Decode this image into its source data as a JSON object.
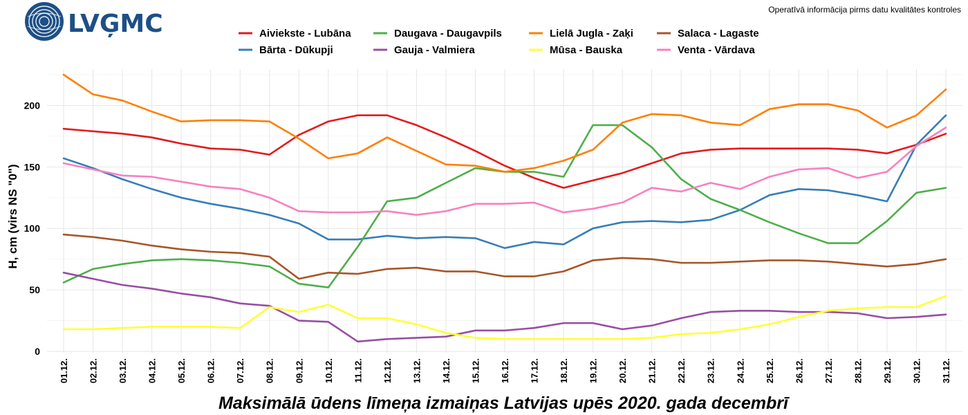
{
  "header": {
    "logo_text": "LVĢMC",
    "note": "Operatīvā informācija pirms datu kvalitātes kontroles"
  },
  "chart_data": {
    "type": "line",
    "title": "Maksimālā ūdens līmeņa izmaiņas Latvijas upēs 2020. gada decembrī",
    "xlabel": "",
    "ylabel": "H, cm (virs NS \"0\")",
    "ylim": [
      0,
      225
    ],
    "yticks": [
      0,
      50,
      100,
      150,
      200
    ],
    "grid": true,
    "legend_position": "top",
    "categories": [
      "01.12.",
      "02.12.",
      "03.12.",
      "04.12.",
      "05.12.",
      "06.12.",
      "07.12.",
      "08.12.",
      "09.12.",
      "10.12.",
      "11.12.",
      "12.12.",
      "13.12.",
      "14.12.",
      "15.12.",
      "16.12.",
      "17.12.",
      "18.12.",
      "19.12.",
      "20.12.",
      "21.12.",
      "22.12.",
      "23.12.",
      "24.12.",
      "25.12.",
      "26.12.",
      "27.12.",
      "28.12.",
      "29.12.",
      "30.12.",
      "31.12."
    ],
    "series": [
      {
        "name": "Aiviekste - Lubāna",
        "color": "#e41a1c",
        "values": [
          181,
          179,
          177,
          174,
          169,
          165,
          164,
          160,
          176,
          187,
          192,
          192,
          184,
          174,
          163,
          151,
          141,
          133,
          139,
          145,
          153,
          161,
          164,
          165,
          165,
          165,
          165,
          164,
          161,
          168,
          177
        ]
      },
      {
        "name": "Bārta - Dūkupji",
        "color": "#377eb8",
        "values": [
          157,
          149,
          140,
          132,
          125,
          120,
          116,
          111,
          104,
          91,
          91,
          94,
          92,
          93,
          92,
          84,
          89,
          87,
          100,
          105,
          106,
          105,
          107,
          115,
          127,
          132,
          131,
          127,
          122,
          168,
          192
        ]
      },
      {
        "name": "Daugava - Daugavpils",
        "color": "#4daf4a",
        "values": [
          56,
          67,
          71,
          74,
          75,
          74,
          72,
          69,
          55,
          52,
          85,
          122,
          125,
          137,
          149,
          146,
          146,
          142,
          184,
          184,
          166,
          140,
          124,
          115,
          105,
          96,
          88,
          88,
          106,
          129,
          133
        ]
      },
      {
        "name": "Gauja - Valmiera",
        "color": "#984ea3",
        "values": [
          64,
          59,
          54,
          51,
          47,
          44,
          39,
          37,
          25,
          24,
          8,
          10,
          11,
          12,
          17,
          17,
          19,
          23,
          23,
          18,
          21,
          27,
          32,
          33,
          33,
          32,
          32,
          31,
          27,
          28,
          30
        ]
      },
      {
        "name": "Lielā Jugla - Zaķi",
        "color": "#ff7f00",
        "values": [
          225,
          209,
          204,
          195,
          187,
          188,
          188,
          187,
          173,
          157,
          161,
          174,
          163,
          152,
          151,
          146,
          149,
          155,
          164,
          186,
          193,
          192,
          186,
          184,
          197,
          201,
          201,
          196,
          182,
          192,
          213
        ]
      },
      {
        "name": "Mūsa - Bauska",
        "color": "#ffff33",
        "values": [
          18,
          18,
          19,
          20,
          20,
          20,
          19,
          36,
          32,
          38,
          27,
          27,
          22,
          15,
          11,
          10,
          10,
          10,
          10,
          10,
          11,
          14,
          15,
          18,
          22,
          28,
          33,
          35,
          36,
          36,
          45
        ]
      },
      {
        "name": "Salaca - Lagaste",
        "color": "#a65628",
        "values": [
          95,
          93,
          90,
          86,
          83,
          81,
          80,
          77,
          59,
          64,
          63,
          67,
          68,
          65,
          65,
          61,
          61,
          65,
          74,
          76,
          75,
          72,
          72,
          73,
          74,
          74,
          73,
          71,
          69,
          71,
          75
        ]
      },
      {
        "name": "Venta - Vārdava",
        "color": "#f781bf",
        "values": [
          153,
          148,
          143,
          142,
          138,
          134,
          132,
          125,
          114,
          113,
          113,
          114,
          111,
          114,
          120,
          120,
          121,
          113,
          116,
          121,
          133,
          130,
          137,
          132,
          142,
          148,
          149,
          141,
          146,
          167,
          182
        ]
      }
    ]
  }
}
